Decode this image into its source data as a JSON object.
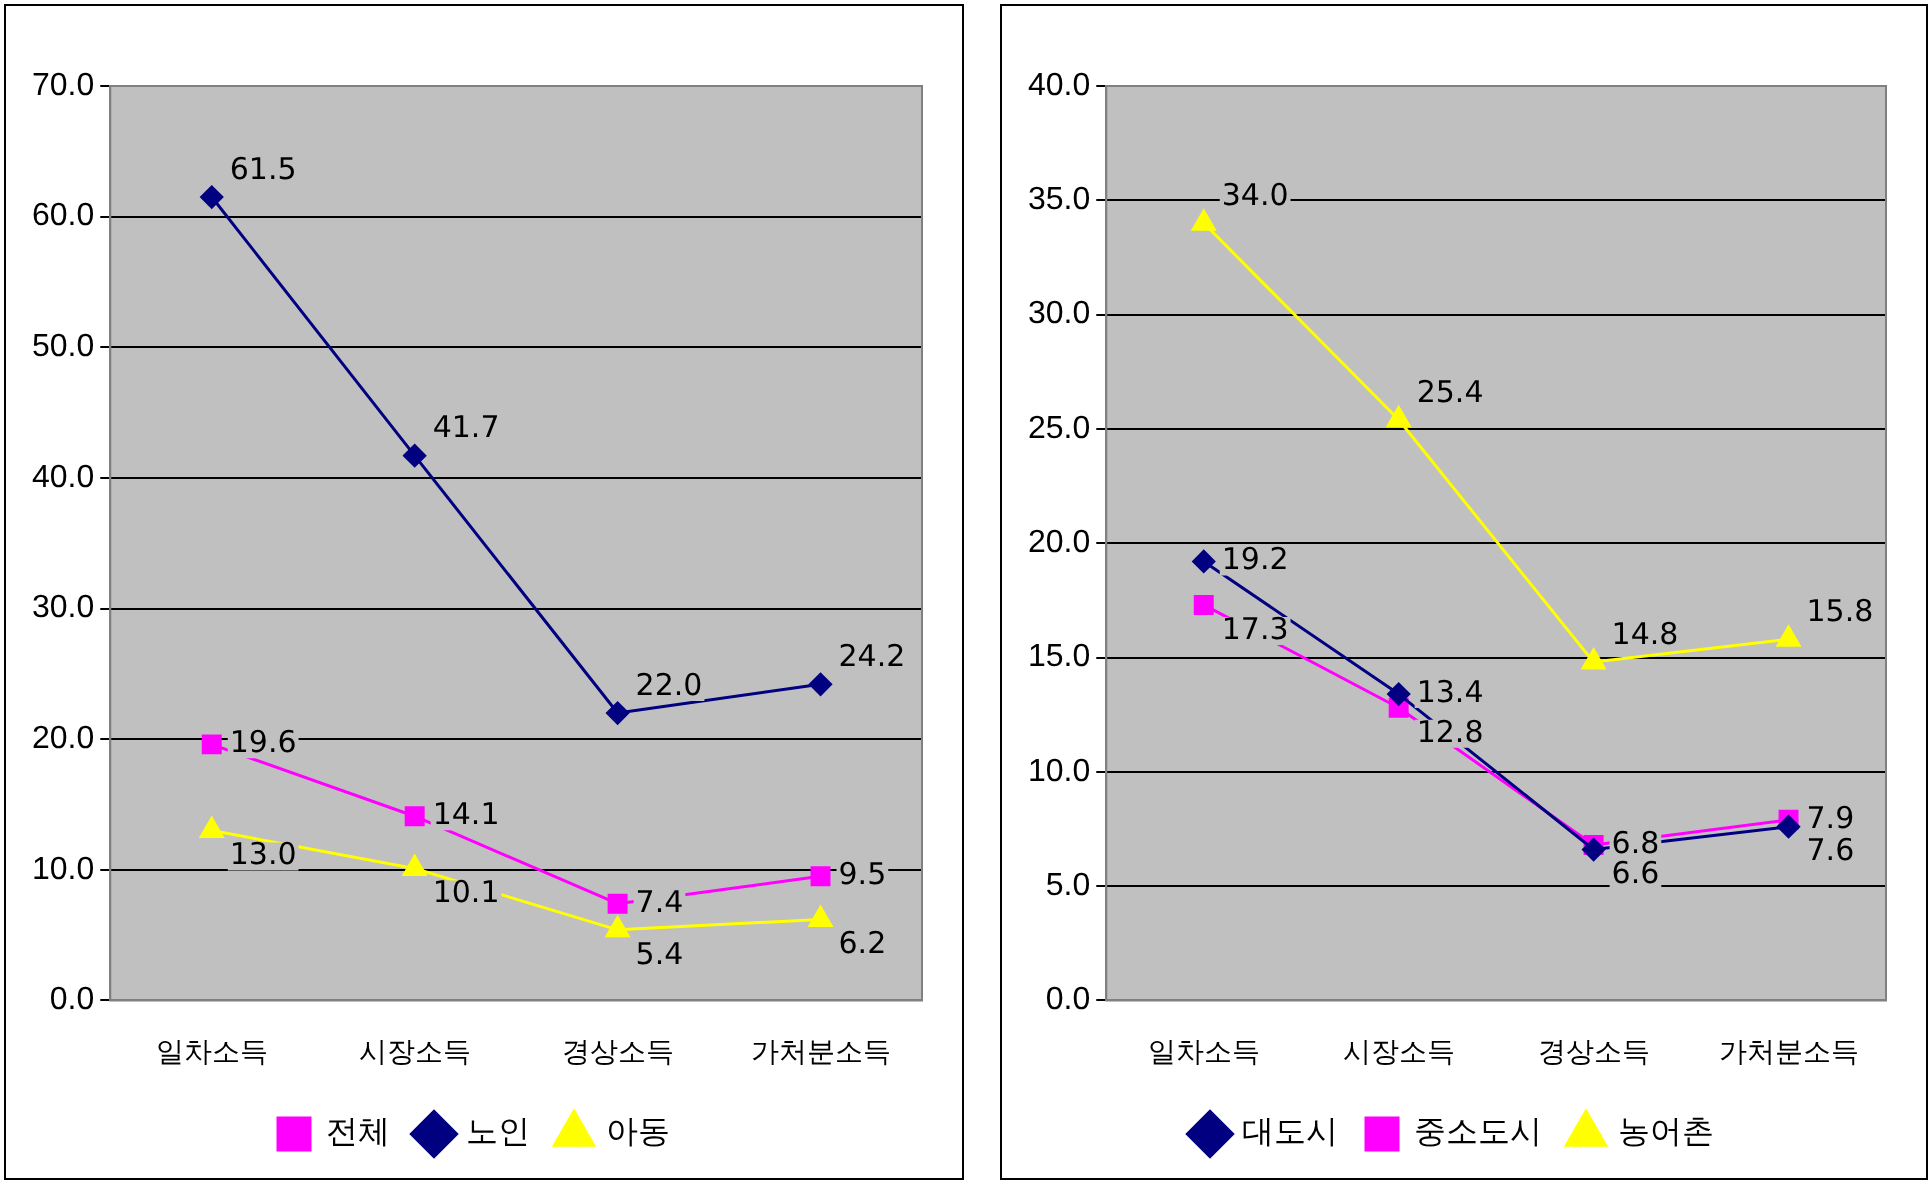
{
  "chart_data": [
    {
      "type": "line",
      "categories": [
        "일차소득",
        "시장소득",
        "경상소득",
        "가처분소득"
      ],
      "ylim": [
        0,
        70
      ],
      "yticks": [
        {
          "value": 0,
          "label": "0.0"
        },
        {
          "value": 10,
          "label": "10.0"
        },
        {
          "value": 20,
          "label": "20.0"
        },
        {
          "value": 30,
          "label": "30.0"
        },
        {
          "value": 40,
          "label": "40.0"
        },
        {
          "value": 50,
          "label": "50.0"
        },
        {
          "value": 60,
          "label": "60.0"
        },
        {
          "value": 70,
          "label": "70.0"
        }
      ],
      "grid": "y",
      "legend": "bottom",
      "series": [
        {
          "name": "전체",
          "color": "#ff00ff",
          "marker": "square",
          "values": [
            19.6,
            14.1,
            7.4,
            9.5
          ],
          "value_labels": [
            "19.6",
            "14.1",
            "7.4",
            "9.5"
          ]
        },
        {
          "name": "노인",
          "color": "#000080",
          "marker": "diamond",
          "values": [
            61.5,
            41.7,
            22.0,
            24.2
          ],
          "value_labels": [
            "61.5",
            "41.7",
            "22.0",
            "24.2"
          ]
        },
        {
          "name": "아동",
          "color": "#ffff00",
          "marker": "triangle",
          "values": [
            13.0,
            10.1,
            5.4,
            6.2
          ],
          "value_labels": [
            "13.0",
            "10.1",
            "5.4",
            "6.2"
          ]
        }
      ]
    },
    {
      "type": "line",
      "categories": [
        "일차소득",
        "시장소득",
        "경상소득",
        "가처분소득"
      ],
      "ylim": [
        0,
        40
      ],
      "yticks": [
        {
          "value": 0,
          "label": "0.0"
        },
        {
          "value": 5,
          "label": "5.0"
        },
        {
          "value": 10,
          "label": "10.0"
        },
        {
          "value": 15,
          "label": "15.0"
        },
        {
          "value": 20,
          "label": "20.0"
        },
        {
          "value": 25,
          "label": "25.0"
        },
        {
          "value": 30,
          "label": "30.0"
        },
        {
          "value": 35,
          "label": "35.0"
        },
        {
          "value": 40,
          "label": "40.0"
        }
      ],
      "grid": "y",
      "legend": "bottom",
      "series": [
        {
          "name": "대도시",
          "color": "#000080",
          "marker": "diamond",
          "values": [
            19.2,
            13.4,
            6.6,
            7.6
          ],
          "value_labels": [
            "19.2",
            "13.4",
            "6.6",
            "7.6"
          ]
        },
        {
          "name": "중소도시",
          "color": "#ff00ff",
          "marker": "square",
          "values": [
            17.3,
            12.8,
            6.8,
            7.9
          ],
          "value_labels": [
            "17.3",
            "12.8",
            "6.8",
            "7.9"
          ]
        },
        {
          "name": "농어촌",
          "color": "#ffff00",
          "marker": "triangle",
          "values": [
            34.0,
            25.4,
            14.8,
            15.8
          ],
          "value_labels": [
            "34.0",
            "25.4",
            "14.8",
            "15.8"
          ]
        }
      ]
    }
  ]
}
